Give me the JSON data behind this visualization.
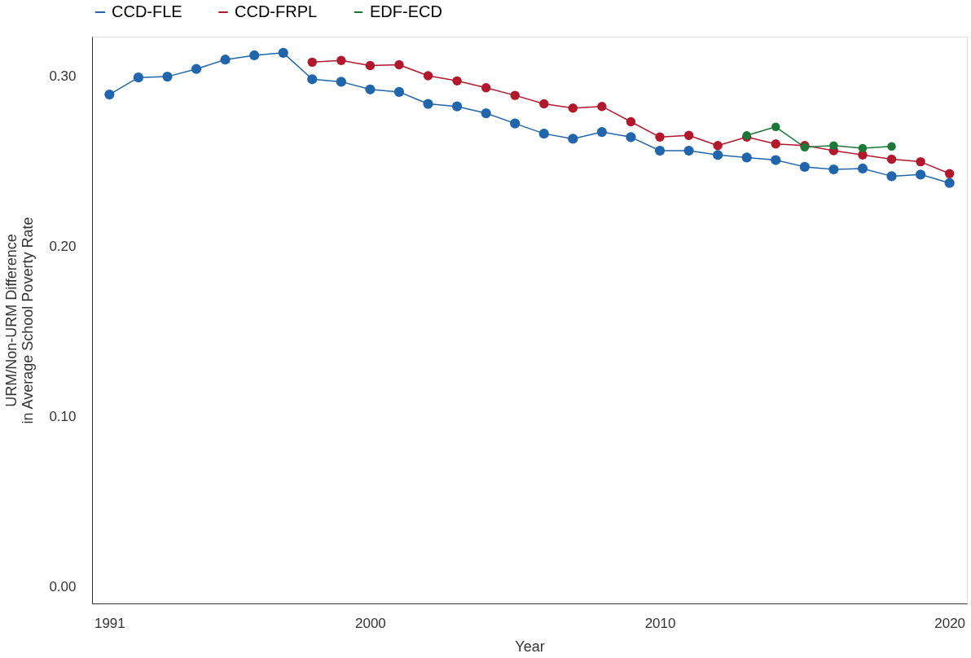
{
  "chart_data": {
    "type": "line",
    "xlabel": "Year",
    "ylabel": "URM/Non-URM Difference\nin Average School Poverty Rate",
    "x": [
      1991,
      1992,
      1993,
      1994,
      1995,
      1996,
      1997,
      1998,
      1999,
      2000,
      2001,
      2002,
      2003,
      2004,
      2005,
      2006,
      2007,
      2008,
      2009,
      2010,
      2011,
      2012,
      2013,
      2014,
      2015,
      2016,
      2017,
      2018,
      2019,
      2020
    ],
    "series": [
      {
        "name": "CCD-FLE",
        "color": "#2166ac",
        "values": [
          0.289,
          0.299,
          0.2995,
          0.304,
          0.3095,
          0.312,
          0.3135,
          0.298,
          0.2965,
          0.292,
          0.2905,
          0.2835,
          0.282,
          0.278,
          0.272,
          0.266,
          0.263,
          0.267,
          0.264,
          0.256,
          0.256,
          0.2535,
          0.252,
          0.2505,
          0.2465,
          0.245,
          0.2455,
          0.241,
          0.242,
          0.237
        ]
      },
      {
        "name": "CCD-FRPL",
        "color": "#b2182b",
        "x": [
          1998,
          1999,
          2000,
          2001,
          2002,
          2003,
          2004,
          2005,
          2006,
          2007,
          2008,
          2009,
          2010,
          2011,
          2012,
          2013,
          2014,
          2015,
          2016,
          2017,
          2018,
          2019,
          2020
        ],
        "values": [
          0.308,
          0.309,
          0.306,
          0.3065,
          0.3,
          0.297,
          0.293,
          0.2885,
          0.2835,
          0.281,
          0.282,
          0.273,
          0.264,
          0.265,
          0.259,
          0.264,
          0.26,
          0.259,
          0.256,
          0.2535,
          0.251,
          0.2495,
          0.2425
        ]
      },
      {
        "name": "EDF-ECD",
        "color": "#1b7837",
        "x": [
          2013,
          2014,
          2015,
          2016,
          2017,
          2018
        ],
        "values": [
          0.265,
          0.27,
          0.258,
          0.259,
          0.2575,
          0.2585
        ]
      }
    ],
    "xlim": [
      1990.4,
      2020.6
    ],
    "xticks": [
      1991,
      2000,
      2010,
      2020
    ],
    "ylim": [
      -0.01,
      0.323
    ],
    "yticks": [
      {
        "value": 0,
        "label": "0.00"
      },
      {
        "value": 0.1,
        "label": "0.10"
      },
      {
        "value": 0.2,
        "label": "0.20"
      },
      {
        "value": 0.3,
        "label": "0.30"
      }
    ],
    "grid": false,
    "legend": "top",
    "marker": "circle",
    "line_style": "solid"
  }
}
